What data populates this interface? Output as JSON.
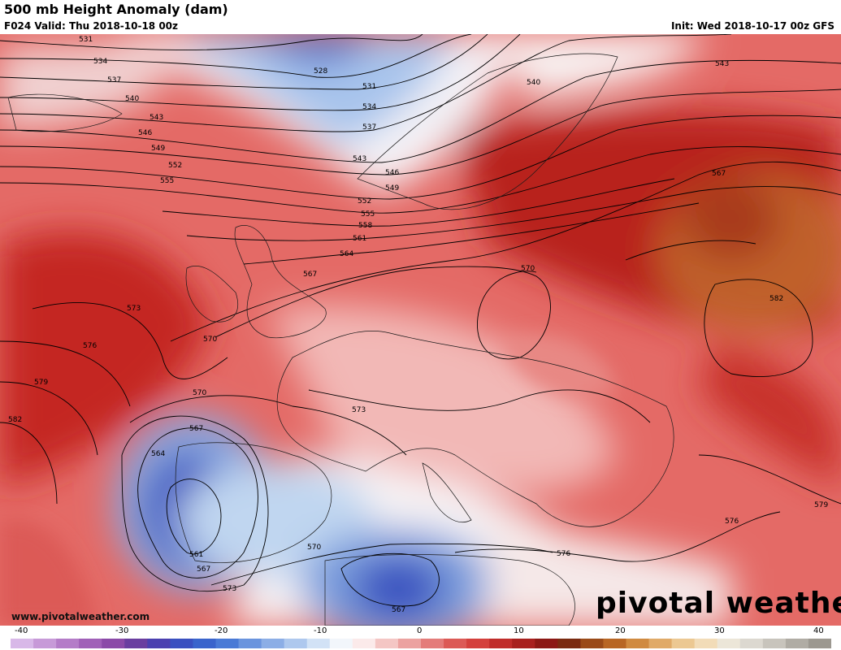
{
  "header": {
    "title": "500 mb Height Anomaly (dam)",
    "valid": "F024 Valid: Thu 2018-10-18 00z",
    "init": "Init: Wed 2018-10-17 00z GFS"
  },
  "watermark": {
    "url": "www.pivotalweather.com",
    "logo": "pivotal weather"
  },
  "colorbar": {
    "ticks": [
      "-40",
      "-30",
      "-20",
      "-10",
      "0",
      "10",
      "20",
      "30",
      "40"
    ],
    "colors": [
      "#d8b8e8",
      "#c79ad8",
      "#b47cc8",
      "#a060b8",
      "#8b4aa8",
      "#6a3ea0",
      "#4b40b0",
      "#3a50c0",
      "#3a64cc",
      "#4a7ad6",
      "#6a94de",
      "#8caee6",
      "#aec8ee",
      "#d2e2f6",
      "#f2f6fb",
      "#fbeaea",
      "#f4c6c4",
      "#eca2a0",
      "#e47c7a",
      "#dc5a56",
      "#d4403c",
      "#c02c2a",
      "#a8201e",
      "#8c1814",
      "#7a2a10",
      "#9a4a18",
      "#b86624",
      "#d08a40",
      "#e0aa68",
      "#ecc892",
      "#f2dcb8",
      "#ece6d8",
      "#dcd8d0",
      "#c8c4bc",
      "#b0aca4",
      "#9c9890"
    ]
  },
  "contour_labels": [
    "531",
    "534",
    "537",
    "540",
    "543",
    "546",
    "549",
    "552",
    "555",
    "528",
    "531",
    "534",
    "537",
    "543",
    "546",
    "549",
    "552",
    "555",
    "558",
    "561",
    "564",
    "567",
    "570",
    "573",
    "576",
    "579",
    "582",
    "570",
    "567",
    "564",
    "561",
    "567",
    "573",
    "570",
    "576",
    "567",
    "570",
    "573",
    "540",
    "543",
    "567",
    "582",
    "576",
    "579"
  ],
  "colors": {
    "strong_positive": "#a8140e",
    "positive": "#e06060",
    "weak_positive": "#f6cccc",
    "neutral": "#f7f3f3",
    "negative": "#7aa0dc",
    "strong_negative": "#3146b4",
    "ridge_core": "#c8642c"
  }
}
